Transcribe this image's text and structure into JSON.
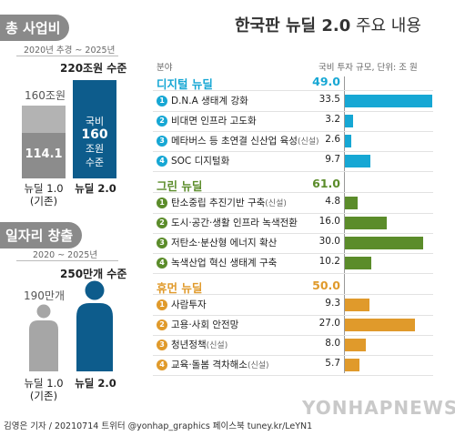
{
  "left": {
    "total": {
      "pill": "총 사업비",
      "period": "2020년 추경 ~ 2025년",
      "old_label": "160조원",
      "old_inner": "114.1",
      "new_top_label": "220조원 수준",
      "new_inner": [
        "국비",
        "160",
        "조원",
        "수준"
      ],
      "old_caption": [
        "뉴딜 1.0",
        "(기존)"
      ],
      "new_caption": "뉴딜 2.0"
    },
    "jobs": {
      "pill": "일자리 창출",
      "period": "2020 ~ 2025년",
      "old_label": "190만개",
      "new_label": "250만개 수준",
      "old_caption": [
        "뉴딜 1.0",
        "(기존)"
      ],
      "new_caption": "뉴딜 2.0"
    }
  },
  "right": {
    "title_bold": "한국판 뉴딜 2.0",
    "title_rest": " 주요 내용",
    "col_field": "분야",
    "col_budget": "국비 투자 규모, 단위: 조 원"
  },
  "chart_data": {
    "type": "bar",
    "orientation": "horizontal",
    "unit": "조 원",
    "sections": [
      {
        "name": "디지털 뉴딜",
        "total": "49.0",
        "color": "#16a7d4",
        "items": [
          {
            "num": "1",
            "label": "D.N.A 생태계 강화",
            "note": "",
            "value": 33.5,
            "value_text": "33.5"
          },
          {
            "num": "2",
            "label": "비대면 인프라 고도화",
            "note": "",
            "value": 3.2,
            "value_text": "3.2"
          },
          {
            "num": "3",
            "label": "메타버스 등 초연결 신산업 육성",
            "note": "(신설)",
            "value": 2.6,
            "value_text": "2.6"
          },
          {
            "num": "4",
            "label": "SOC 디지털화",
            "note": "",
            "value": 9.7,
            "value_text": "9.7"
          }
        ]
      },
      {
        "name": "그린 뉴딜",
        "total": "61.0",
        "color": "#5b8c2a",
        "items": [
          {
            "num": "1",
            "label": "탄소중립 추진기반 구축",
            "note": "(신설)",
            "value": 4.8,
            "value_text": "4.8"
          },
          {
            "num": "2",
            "label": "도시·공간·생활 인프라 녹색전환",
            "note": "",
            "value": 16.0,
            "value_text": "16.0"
          },
          {
            "num": "3",
            "label": "저탄소·분산형 에너지 확산",
            "note": "",
            "value": 30.0,
            "value_text": "30.0"
          },
          {
            "num": "4",
            "label": "녹색산업 혁신 생태계 구축",
            "note": "",
            "value": 10.2,
            "value_text": "10.2"
          }
        ]
      },
      {
        "name": "휴먼 뉴딜",
        "total": "50.0",
        "color": "#e09a2b",
        "items": [
          {
            "num": "1",
            "label": "사람투자",
            "note": "",
            "value": 9.3,
            "value_text": "9.3"
          },
          {
            "num": "2",
            "label": "고용·사회 안전망",
            "note": "",
            "value": 27.0,
            "value_text": "27.0"
          },
          {
            "num": "3",
            "label": "청년정책",
            "note": "(신설)",
            "value": 8.0,
            "value_text": "8.0"
          },
          {
            "num": "4",
            "label": "교육·돌봄 격차해소",
            "note": "(신설)",
            "value": 5.7,
            "value_text": "5.7"
          }
        ]
      }
    ]
  },
  "footer": "김영은 기자 / 20210714  트위터 @yonhap_graphics  페이스북 tuney.kr/LeYN1",
  "watermark": "YONHAPNEWS"
}
